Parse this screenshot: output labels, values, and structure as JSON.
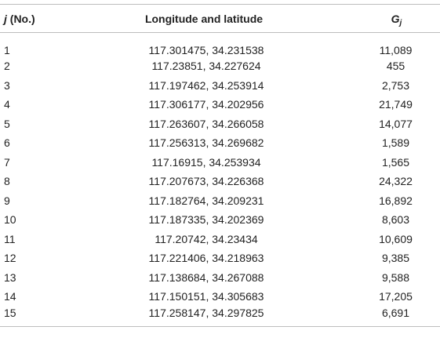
{
  "table": {
    "headers": {
      "j_symbol": "j",
      "j_suffix": " (No.)",
      "lonlat": "Longitude and latitude",
      "g_symbol": "G",
      "g_sub": "j"
    },
    "rows": [
      {
        "j": "1",
        "lonlat": "117.301475, 34.231538",
        "g": "11,089"
      },
      {
        "j": "2",
        "lonlat": "117.23851, 34.227624",
        "g": "455"
      },
      {
        "j": "3",
        "lonlat": "117.197462, 34.253914",
        "g": "2,753"
      },
      {
        "j": "4",
        "lonlat": "117.306177, 34.202956",
        "g": "21,749"
      },
      {
        "j": "5",
        "lonlat": "117.263607, 34.266058",
        "g": "14,077"
      },
      {
        "j": "6",
        "lonlat": "117.256313, 34.269682",
        "g": "1,589"
      },
      {
        "j": "7",
        "lonlat": "117.16915, 34.253934",
        "g": "1,565"
      },
      {
        "j": "8",
        "lonlat": "117.207673, 34.226368",
        "g": "24,322"
      },
      {
        "j": "9",
        "lonlat": "117.182764, 34.209231",
        "g": "16,892"
      },
      {
        "j": "10",
        "lonlat": "117.187335, 34.202369",
        "g": "8,603"
      },
      {
        "j": "11",
        "lonlat": "117.20742, 34.23434",
        "g": "10,609"
      },
      {
        "j": "12",
        "lonlat": "117.221406, 34.218963",
        "g": "9,385"
      },
      {
        "j": "13",
        "lonlat": "117.138684, 34.267088",
        "g": "9,588"
      },
      {
        "j": "14",
        "lonlat": "117.150151, 34.305683",
        "g": "17,205"
      },
      {
        "j": "15",
        "lonlat": "117.258147, 34.297825",
        "g": "6,691"
      }
    ]
  }
}
